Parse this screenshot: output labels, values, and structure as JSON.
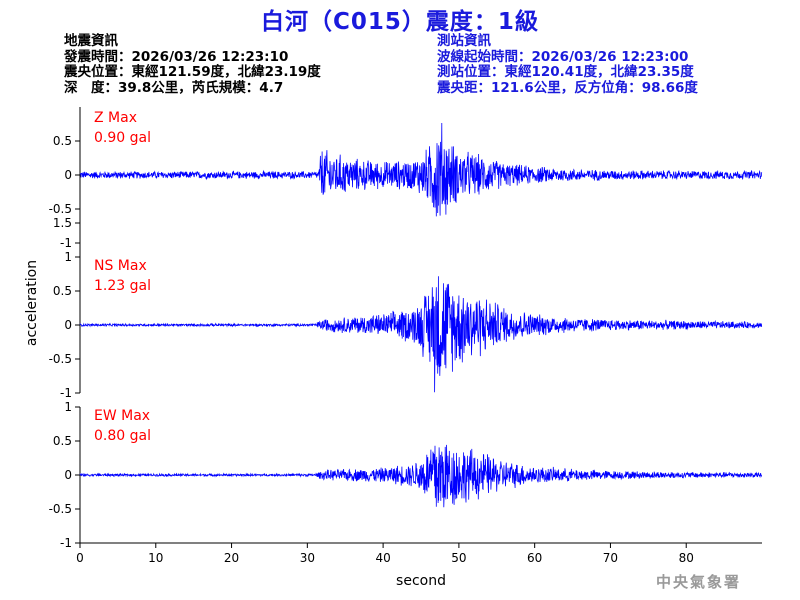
{
  "title": "白河（C015）震度：1級",
  "earthquake_info": {
    "heading": "地震資訊",
    "origin_time": "發震時間：2026/03/26 12:23:10",
    "epicenter": "震央位置：東經121.59度，北緯23.19度",
    "depth_magnitude": "深　度：39.8公里，芮氏規模：4.7"
  },
  "station_info": {
    "heading": "測站資訊",
    "start_time": "波線起始時間：2026/03/26 12:23:00",
    "location": "測站位置：東經120.41度，北緯23.35度",
    "distance": "震央距：121.6公里，反方位角：98.66度"
  },
  "agency": "中央氣象署",
  "colors": {
    "trace": "#0000ff",
    "max_label": "#ff0000",
    "title": "#1a1adc",
    "axis": "#000000"
  },
  "chart_data": {
    "type": "line",
    "xlabel": "second",
    "ylabel": "acceleration",
    "xlim": [
      0,
      90
    ],
    "xticks": [
      0,
      10,
      20,
      30,
      40,
      50,
      60,
      70,
      80
    ],
    "grid": false,
    "panels": [
      {
        "component": "Z",
        "max_label": "Z Max",
        "max_value": "0.90 gal",
        "ylim": [
          -1,
          1
        ],
        "yticks": [
          -1,
          -0.5,
          0,
          0.5
        ],
        "envelope_x": [
          0,
          31.5,
          31.8,
          33,
          36,
          40,
          44,
          46,
          47,
          47.8,
          48.5,
          50,
          53,
          56,
          60,
          65,
          70,
          80,
          90
        ],
        "envelope_y": [
          0.06,
          0.06,
          0.45,
          0.38,
          0.27,
          0.22,
          0.25,
          0.45,
          0.8,
          0.88,
          0.6,
          0.42,
          0.32,
          0.2,
          0.14,
          0.1,
          0.08,
          0.07,
          0.07
        ]
      },
      {
        "component": "NS",
        "max_label": "NS Max",
        "max_value": "1.23 gal",
        "ylim": [
          -1,
          1.5
        ],
        "yticks": [
          -1,
          -0.5,
          0,
          0.5,
          1,
          1.5
        ],
        "envelope_x": [
          0,
          31,
          32,
          36,
          40,
          44,
          46,
          47,
          47.8,
          49,
          51,
          53,
          56,
          60,
          65,
          70,
          80,
          90
        ],
        "envelope_y": [
          0.02,
          0.02,
          0.1,
          0.14,
          0.18,
          0.3,
          0.6,
          1.15,
          0.95,
          0.75,
          0.6,
          0.5,
          0.3,
          0.18,
          0.12,
          0.09,
          0.07,
          0.05
        ]
      },
      {
        "component": "EW",
        "max_label": "EW Max",
        "max_value": "0.80 gal",
        "ylim": [
          -1,
          1
        ],
        "yticks": [
          -1,
          -0.5,
          0,
          0.5,
          1
        ],
        "envelope_x": [
          0,
          31,
          32,
          36,
          40,
          44,
          46,
          47,
          47.8,
          49,
          51,
          53,
          56,
          60,
          65,
          70,
          80,
          90
        ],
        "envelope_y": [
          0.02,
          0.02,
          0.08,
          0.1,
          0.12,
          0.2,
          0.45,
          0.8,
          0.68,
          0.55,
          0.45,
          0.38,
          0.24,
          0.14,
          0.1,
          0.07,
          0.05,
          0.04
        ]
      }
    ]
  }
}
